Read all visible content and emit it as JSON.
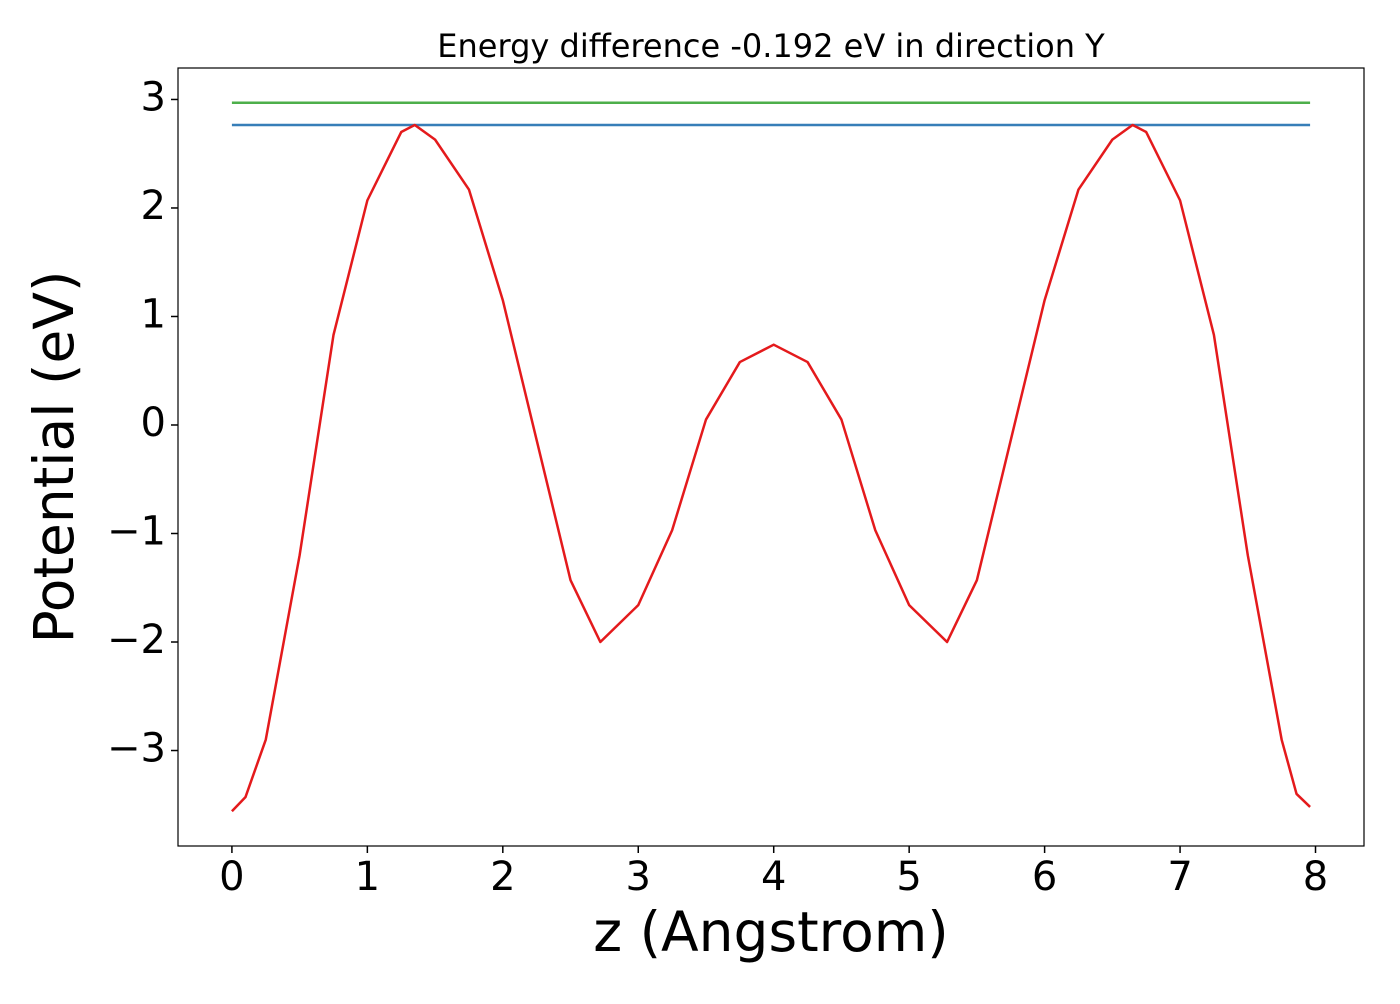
{
  "chart_data": {
    "type": "line",
    "title": "Energy difference -0.192 eV in direction Y",
    "x_label": "z (Angstrom)",
    "y_label": "Potential (eV)",
    "xlim": [
      -0.398,
      8.358
    ],
    "ylim": [
      -3.88,
      3.29
    ],
    "xticks": [
      0,
      1,
      2,
      3,
      4,
      5,
      6,
      7,
      8
    ],
    "yticks": [
      {
        "value": -3,
        "label": "−3"
      },
      {
        "value": -2,
        "label": "−2"
      },
      {
        "value": -1,
        "label": "−1"
      },
      0,
      1,
      2,
      3
    ],
    "series": [
      {
        "color": "#4daf4a",
        "x": [
          0,
          7.96
        ],
        "values": [
          2.97,
          2.97
        ]
      },
      {
        "color": "#377eb8",
        "x": [
          0,
          7.96
        ],
        "values": [
          2.765,
          2.765
        ]
      },
      {
        "color": "#e41a1c",
        "x": [
          0,
          0.1,
          0.25,
          0.5,
          0.75,
          1.0,
          1.25,
          1.35,
          1.5,
          1.75,
          2.0,
          2.25,
          2.5,
          2.72,
          3.0,
          3.25,
          3.5,
          3.75,
          4.0,
          4.25,
          4.5,
          4.75,
          5.0,
          5.28,
          5.5,
          5.75,
          6.0,
          6.25,
          6.5,
          6.65,
          6.75,
          7.0,
          7.25,
          7.5,
          7.75,
          7.86,
          7.96
        ],
        "values": [
          -3.56,
          -3.43,
          -2.9,
          -1.2,
          0.83,
          2.07,
          2.7,
          2.765,
          2.63,
          2.17,
          1.15,
          -0.14,
          -1.43,
          -2.0,
          -1.66,
          -0.97,
          0.05,
          0.58,
          0.74,
          0.58,
          0.05,
          -0.97,
          -1.66,
          -2.0,
          -1.43,
          -0.14,
          1.15,
          2.17,
          2.63,
          2.765,
          2.7,
          2.07,
          0.83,
          -1.2,
          -2.9,
          -3.4,
          -3.52
        ]
      }
    ]
  }
}
